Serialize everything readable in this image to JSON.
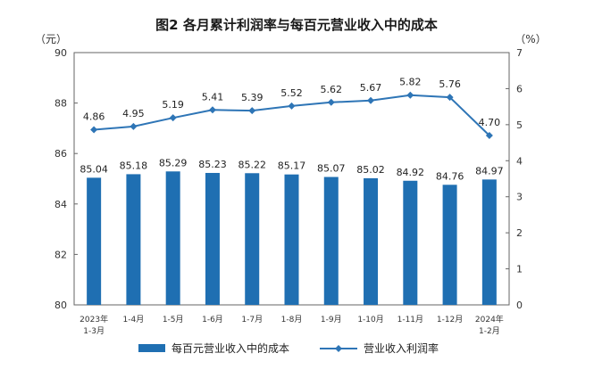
{
  "chart_data": {
    "type": "bar",
    "title": "图2 各月累计利润率与每百元营业收入中的成本",
    "left_unit": "（元）",
    "right_unit": "（%）",
    "categories": [
      [
        "2023年",
        "1-3月"
      ],
      [
        "1-4月"
      ],
      [
        "1-5月"
      ],
      [
        "1-6月"
      ],
      [
        "1-7月"
      ],
      [
        "1-8月"
      ],
      [
        "1-9月"
      ],
      [
        "1-10月"
      ],
      [
        "1-11月"
      ],
      [
        "1-12月"
      ],
      [
        "2024年",
        "1-2月"
      ]
    ],
    "series": [
      {
        "name": "每百元营业收入中的成本",
        "type": "bar",
        "axis": "left",
        "color": "#1f6fb2",
        "values": [
          85.04,
          85.18,
          85.29,
          85.23,
          85.22,
          85.17,
          85.07,
          85.02,
          84.92,
          84.76,
          84.97
        ],
        "labels": [
          "85.04",
          "85.18",
          "85.29",
          "85.23",
          "85.22",
          "85.17",
          "85.07",
          "85.02",
          "84.92",
          "84.76",
          "84.97"
        ]
      },
      {
        "name": "营业收入利润率",
        "type": "line",
        "axis": "right",
        "color": "#2e75b6",
        "values": [
          4.86,
          4.95,
          5.19,
          5.41,
          5.39,
          5.52,
          5.62,
          5.67,
          5.82,
          5.76,
          4.7
        ],
        "labels": [
          "4.86",
          "4.95",
          "5.19",
          "5.41",
          "5.39",
          "5.52",
          "5.62",
          "5.67",
          "5.82",
          "5.76",
          "4.70"
        ]
      }
    ],
    "left_axis": {
      "ylim": [
        80,
        90
      ],
      "ticks": [
        "80",
        "82",
        "84",
        "86",
        "88",
        "90"
      ]
    },
    "right_axis": {
      "ylim": [
        0,
        7
      ],
      "ticks": [
        "0",
        "1",
        "2",
        "3",
        "4",
        "5",
        "6",
        "7"
      ]
    },
    "grid": false,
    "legend_position": "bottom"
  }
}
